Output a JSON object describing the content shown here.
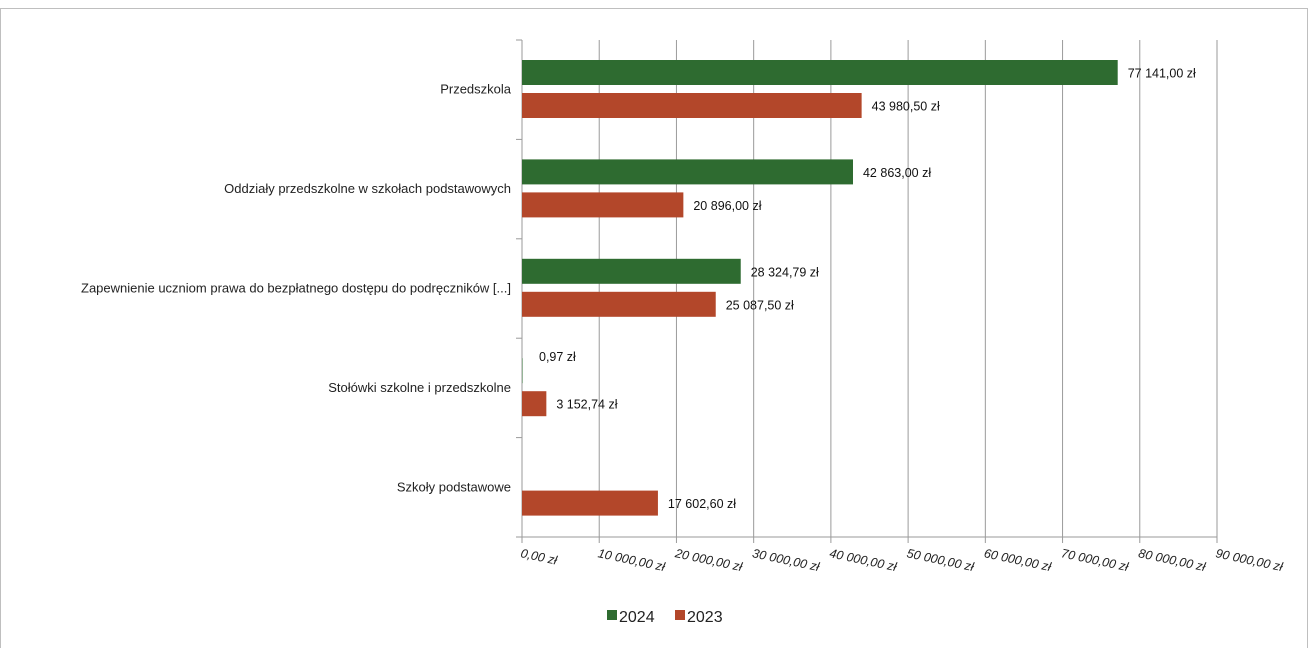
{
  "chart_data": {
    "type": "bar",
    "orientation": "horizontal",
    "categories": [
      "Przedszkola",
      "Oddziały przedszkolne w szkołach podstawowych",
      "Zapewnienie uczniom prawa do bezpłatnego dostępu do podręczników [...]",
      "Stołówki szkolne i przedszkolne",
      "Szkoły podstawowe"
    ],
    "series": [
      {
        "name": "2024",
        "color": "#2e6b30",
        "values": [
          77141.0,
          42863.0,
          28324.79,
          0.97,
          null
        ],
        "labels": [
          "77 141,00 zł",
          "42 863,00 zł",
          "28 324,79 zł",
          "0,97 zł",
          null
        ]
      },
      {
        "name": "2023",
        "color": "#b3472a",
        "values": [
          43980.5,
          20896.0,
          25087.5,
          3152.74,
          17602.6
        ],
        "labels": [
          "43 980,50 zł",
          "20 896,00 zł",
          "25 087,50 zł",
          "3 152,74 zł",
          "17 602,60 zł"
        ]
      }
    ],
    "xlim": [
      0,
      90000
    ],
    "x_ticks": [
      0,
      10000,
      20000,
      30000,
      40000,
      50000,
      60000,
      70000,
      80000,
      90000
    ],
    "x_tick_labels": [
      "0,00 zł",
      "10 000,00 zł",
      "20 000,00 zł",
      "30 000,00 zł",
      "40 000,00 zł",
      "50 000,00 zł",
      "60 000,00 zł",
      "70 000,00 zł",
      "80 000,00 zł",
      "90 000,00 zł"
    ],
    "grid": "vertical",
    "legend_position": "bottom"
  }
}
